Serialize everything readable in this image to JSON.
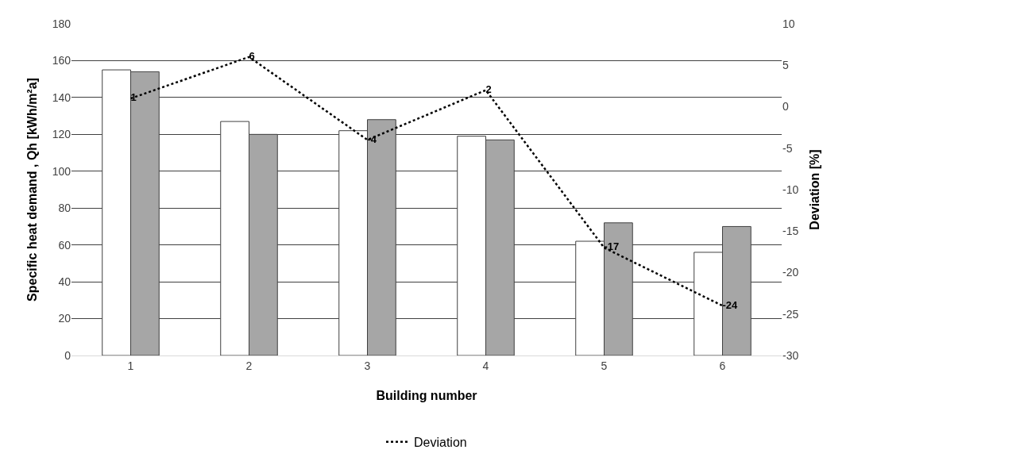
{
  "chart_data": {
    "type": "bar",
    "categories": [
      "1",
      "2",
      "3",
      "4",
      "5",
      "6"
    ],
    "xlabel": "Building number",
    "ylabel": "Specific heat demand , Qh [kWh/m²a]",
    "y2label": "Deviation [%]",
    "series": [
      {
        "color": "#ffffff",
        "values": [
          155,
          127,
          122,
          119,
          62,
          56
        ]
      },
      {
        "color": "#a6a6a6",
        "values": [
          154,
          120,
          128,
          117,
          72,
          70
        ]
      },
      {
        "name": "Deviation",
        "type": "line",
        "axis": "y2",
        "color": "#000000",
        "line_style": "dotted",
        "marker": "none",
        "values": [
          1,
          6,
          -4,
          2,
          -17,
          -24
        ],
        "value_labels": [
          "1",
          "6",
          "-4",
          "2",
          "-17",
          "-24"
        ]
      }
    ],
    "ylim": [
      0,
      180
    ],
    "yticks": [
      0,
      20,
      40,
      60,
      80,
      100,
      120,
      140,
      160,
      180
    ],
    "y2lim": [
      -30,
      10
    ],
    "y2ticks": [
      -30,
      -25,
      -20,
      -15,
      -10,
      -5,
      0,
      5,
      10
    ],
    "grid": "y",
    "legend": "bottom"
  }
}
